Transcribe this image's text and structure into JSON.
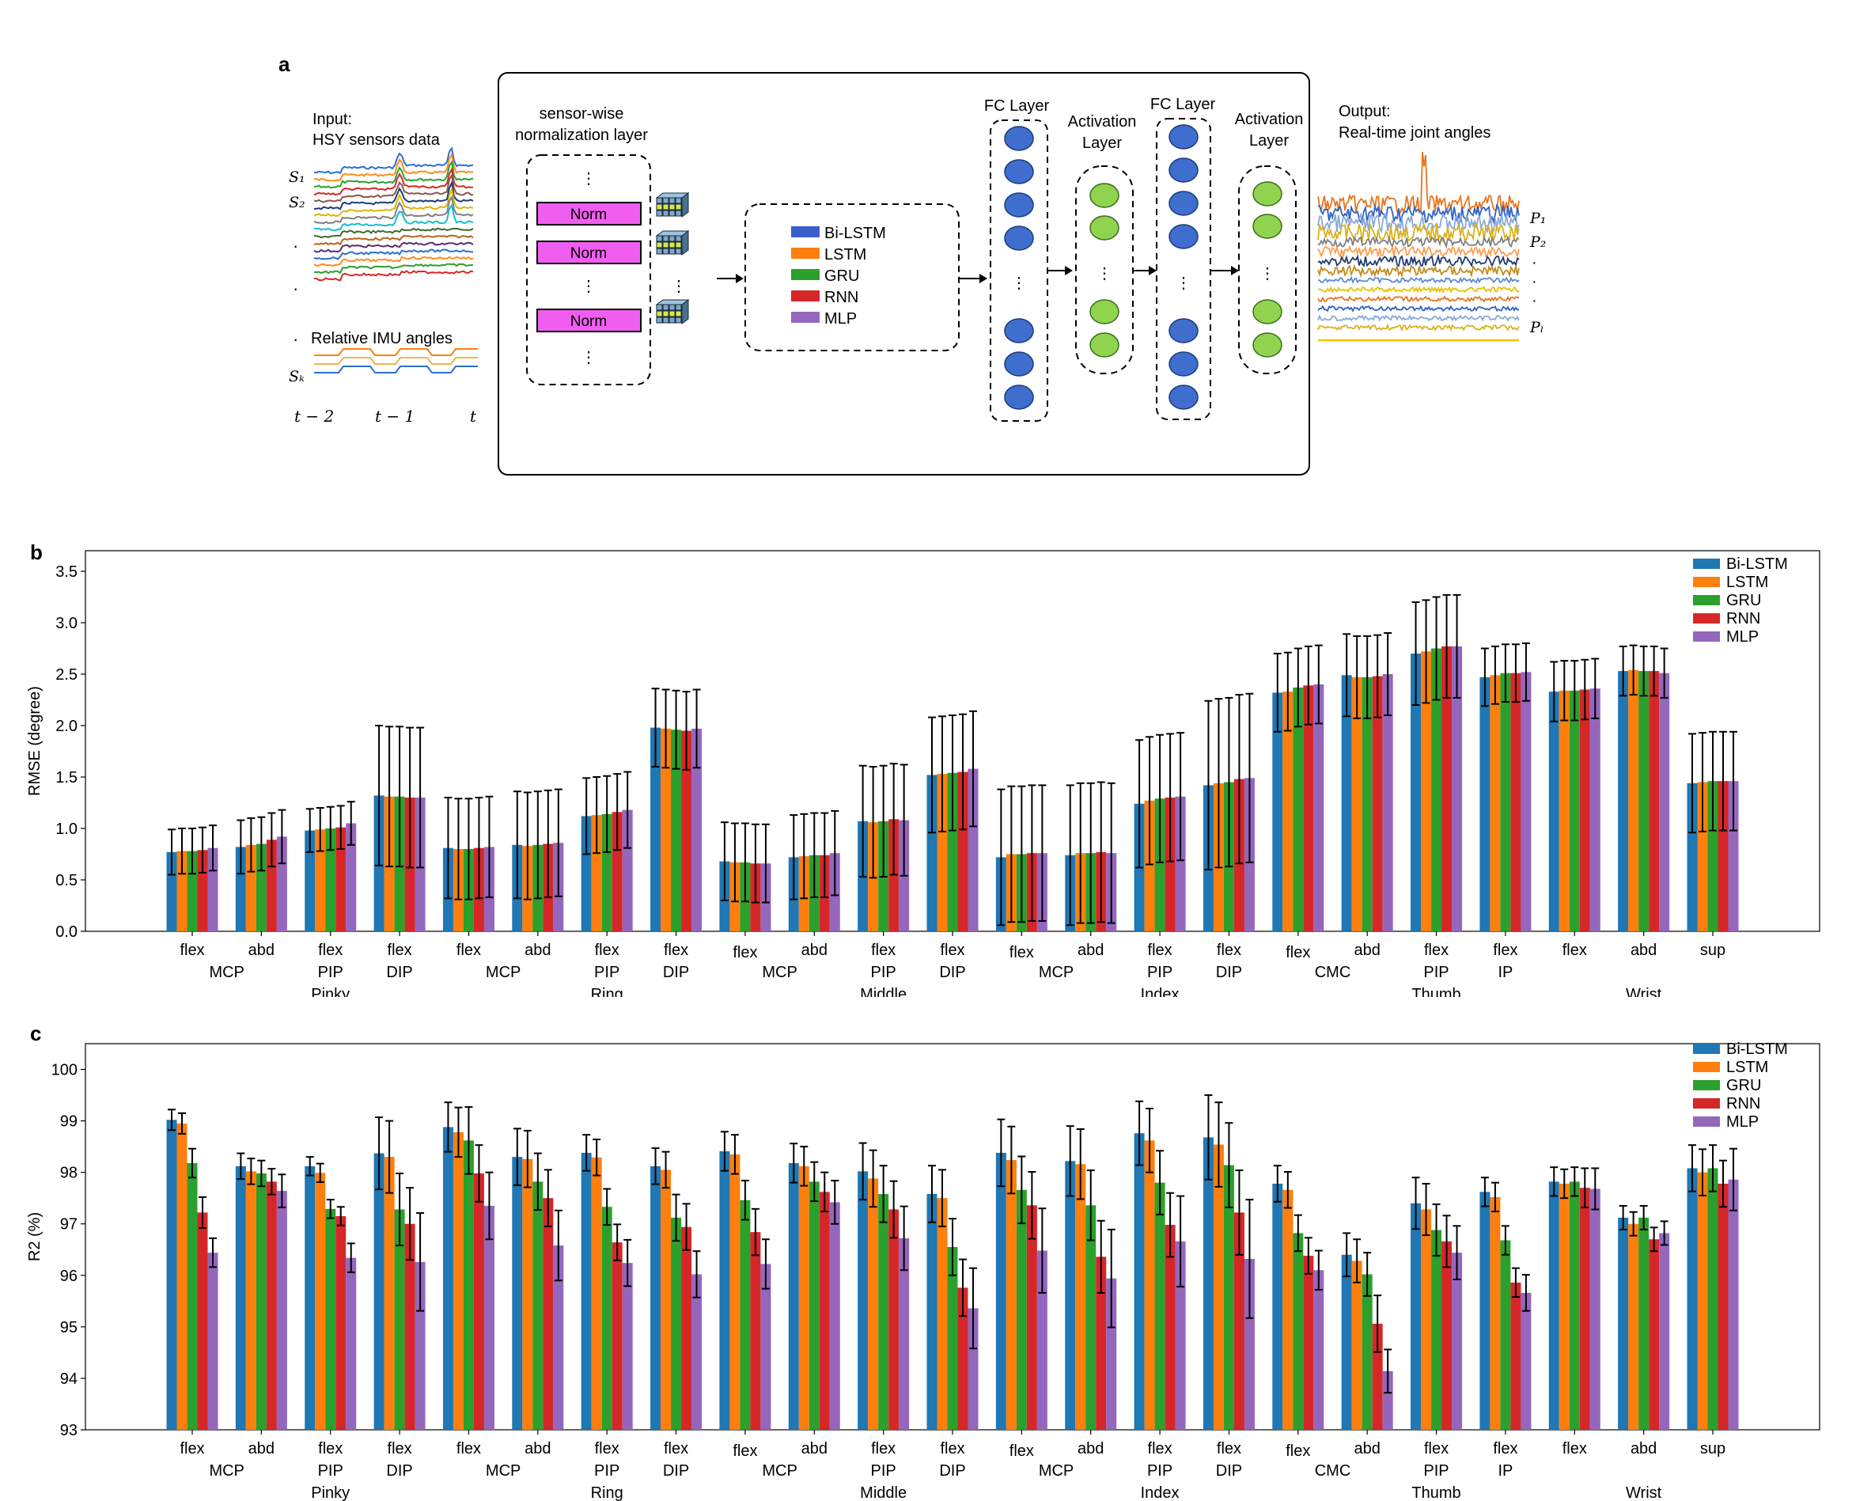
{
  "panel_a": {
    "label": "a",
    "input_title": "Input:",
    "input_subtitle": "HSY sensors data",
    "imu_label": "Relative IMU angles",
    "sensor_labels": [
      "S₁",
      "S₂",
      "Sₖ"
    ],
    "time_labels": [
      "t − 2",
      "t − 1",
      "t"
    ],
    "norm_layer_title_1": "sensor-wise",
    "norm_layer_title_2": "normalization layer",
    "norm_label": "Norm",
    "models": [
      {
        "name": "Bi-LSTM",
        "color": "#3a5fcd"
      },
      {
        "name": "LSTM",
        "color": "#ff7f0e"
      },
      {
        "name": "GRU",
        "color": "#2ca02c"
      },
      {
        "name": "RNN",
        "color": "#d62728"
      },
      {
        "name": "MLP",
        "color": "#9467bd"
      }
    ],
    "fc_layer_label": "FC Layer",
    "activation_label_1": "Activation",
    "activation_label_2": "Layer",
    "output_title": "Output:",
    "output_subtitle": "Real-time joint angles",
    "output_labels": [
      "P₁",
      "P₂",
      "Pₗ"
    ],
    "dots": "⋮"
  },
  "chart_data": [
    {
      "id": "b",
      "type": "bar",
      "panel_label": "b",
      "ylabel": "RMSE (degree)",
      "ylim": [
        0,
        3.7
      ],
      "yticks": [
        0.0,
        0.5,
        1.0,
        1.5,
        2.0,
        2.5,
        3.0,
        3.5
      ],
      "ytick_labels": [
        "0.0",
        "0.5",
        "1.0",
        "1.5",
        "2.0",
        "2.5",
        "3.0",
        "3.5"
      ],
      "legend_position": "top-right",
      "categories": [
        "flex",
        "abd",
        "flex",
        "flex",
        "flex",
        "abd",
        "flex",
        "flex",
        "flex",
        "abd",
        "flex",
        "flex",
        "flex",
        "abd",
        "flex",
        "flex",
        "flex",
        "abd",
        "flex",
        "flex",
        "flex",
        "abd",
        "sup"
      ],
      "group_labels": [
        "MCP",
        "PIP",
        "DIP",
        "MCP",
        "PIP",
        "DIP",
        "MCP",
        "PIP",
        "DIP",
        "MCP",
        "PIP",
        "DIP",
        "CMC",
        "PIP",
        "IP",
        "Wrist"
      ],
      "finger_labels": [
        "Pinky",
        "Ring",
        "Middle",
        "Index",
        "Thumb"
      ],
      "series": [
        {
          "name": "Bi-LSTM",
          "color": "#1f77b4",
          "values": [
            0.77,
            0.82,
            0.98,
            1.32,
            0.81,
            0.84,
            1.12,
            1.98,
            0.68,
            0.72,
            1.07,
            1.52,
            0.72,
            0.74,
            1.24,
            1.42,
            2.32,
            2.49,
            2.7,
            2.47,
            2.33,
            2.53,
            1.44
          ],
          "errors": [
            0.22,
            0.26,
            0.21,
            0.68,
            0.49,
            0.52,
            0.37,
            0.38,
            0.38,
            0.41,
            0.54,
            0.56,
            0.66,
            0.68,
            0.62,
            0.82,
            0.38,
            0.4,
            0.5,
            0.28,
            0.29,
            0.24,
            0.48
          ]
        },
        {
          "name": "LSTM",
          "color": "#ff7f0e",
          "values": [
            0.78,
            0.84,
            0.99,
            1.31,
            0.8,
            0.83,
            1.13,
            1.97,
            0.67,
            0.73,
            1.06,
            1.53,
            0.75,
            0.76,
            1.27,
            1.44,
            2.33,
            2.47,
            2.72,
            2.49,
            2.34,
            2.54,
            1.45
          ],
          "errors": [
            0.22,
            0.26,
            0.21,
            0.68,
            0.49,
            0.52,
            0.37,
            0.38,
            0.38,
            0.41,
            0.54,
            0.56,
            0.66,
            0.68,
            0.62,
            0.82,
            0.38,
            0.4,
            0.5,
            0.28,
            0.29,
            0.24,
            0.48
          ]
        },
        {
          "name": "GRU",
          "color": "#2ca02c",
          "values": [
            0.78,
            0.85,
            1.0,
            1.31,
            0.8,
            0.84,
            1.14,
            1.96,
            0.67,
            0.74,
            1.07,
            1.54,
            0.75,
            0.76,
            1.29,
            1.45,
            2.37,
            2.47,
            2.75,
            2.51,
            2.34,
            2.53,
            1.46
          ],
          "errors": [
            0.22,
            0.26,
            0.21,
            0.68,
            0.49,
            0.52,
            0.37,
            0.38,
            0.38,
            0.41,
            0.54,
            0.56,
            0.66,
            0.68,
            0.62,
            0.82,
            0.38,
            0.4,
            0.5,
            0.28,
            0.29,
            0.24,
            0.48
          ]
        },
        {
          "name": "RNN",
          "color": "#d62728",
          "values": [
            0.79,
            0.89,
            1.01,
            1.3,
            0.81,
            0.85,
            1.16,
            1.95,
            0.66,
            0.74,
            1.09,
            1.55,
            0.76,
            0.77,
            1.3,
            1.48,
            2.39,
            2.48,
            2.77,
            2.51,
            2.35,
            2.53,
            1.46
          ],
          "errors": [
            0.22,
            0.26,
            0.21,
            0.68,
            0.49,
            0.52,
            0.37,
            0.38,
            0.38,
            0.41,
            0.54,
            0.56,
            0.66,
            0.68,
            0.62,
            0.82,
            0.38,
            0.4,
            0.5,
            0.28,
            0.29,
            0.24,
            0.48
          ]
        },
        {
          "name": "MLP",
          "color": "#9467bd",
          "values": [
            0.81,
            0.92,
            1.05,
            1.3,
            0.82,
            0.86,
            1.18,
            1.97,
            0.66,
            0.76,
            1.08,
            1.58,
            0.76,
            0.76,
            1.31,
            1.49,
            2.4,
            2.5,
            2.77,
            2.52,
            2.36,
            2.51,
            1.46
          ],
          "errors": [
            0.22,
            0.26,
            0.21,
            0.68,
            0.49,
            0.52,
            0.37,
            0.38,
            0.38,
            0.41,
            0.54,
            0.56,
            0.66,
            0.68,
            0.62,
            0.82,
            0.38,
            0.4,
            0.5,
            0.28,
            0.29,
            0.24,
            0.48
          ]
        }
      ]
    },
    {
      "id": "c",
      "type": "bar",
      "panel_label": "c",
      "ylabel": "R2 (%)",
      "ylim": [
        93,
        100.5
      ],
      "yticks": [
        93,
        94,
        95,
        96,
        97,
        98,
        99,
        100
      ],
      "ytick_labels": [
        "93",
        "94",
        "95",
        "96",
        "97",
        "98",
        "99",
        "100"
      ],
      "legend_position": "top-right",
      "categories": [
        "flex",
        "abd",
        "flex",
        "flex",
        "flex",
        "abd",
        "flex",
        "flex",
        "flex",
        "abd",
        "flex",
        "flex",
        "flex",
        "abd",
        "flex",
        "flex",
        "flex",
        "abd",
        "flex",
        "flex",
        "flex",
        "abd",
        "sup"
      ],
      "group_labels": [
        "MCP",
        "PIP",
        "DIP",
        "MCP",
        "PIP",
        "DIP",
        "MCP",
        "PIP",
        "DIP",
        "MCP",
        "PIP",
        "DIP",
        "CMC",
        "PIP",
        "IP",
        "Wrist"
      ],
      "finger_labels": [
        "Pinky",
        "Ring",
        "Middle",
        "Index",
        "Thumb"
      ],
      "series": [
        {
          "name": "Bi-LSTM",
          "color": "#1f77b4",
          "values": [
            99.02,
            98.12,
            98.12,
            98.37,
            98.88,
            98.3,
            98.38,
            98.12,
            98.41,
            98.18,
            98.02,
            97.58,
            98.38,
            98.22,
            98.76,
            98.68,
            97.78,
            96.4,
            97.4,
            97.62,
            97.82,
            97.12,
            98.08
          ],
          "errors": [
            0.2,
            0.25,
            0.18,
            0.7,
            0.48,
            0.55,
            0.35,
            0.35,
            0.38,
            0.38,
            0.55,
            0.55,
            0.65,
            0.68,
            0.62,
            0.82,
            0.35,
            0.42,
            0.5,
            0.28,
            0.28,
            0.23,
            0.45
          ]
        },
        {
          "name": "LSTM",
          "color": "#ff7f0e",
          "values": [
            98.95,
            98.02,
            97.99,
            98.3,
            98.78,
            98.26,
            98.29,
            98.05,
            98.35,
            98.12,
            97.88,
            97.5,
            98.24,
            98.16,
            98.62,
            98.54,
            97.66,
            96.28,
            97.28,
            97.52,
            97.78,
            97.0,
            98.0
          ],
          "errors": [
            0.2,
            0.25,
            0.18,
            0.7,
            0.48,
            0.55,
            0.35,
            0.35,
            0.38,
            0.38,
            0.55,
            0.55,
            0.65,
            0.68,
            0.62,
            0.82,
            0.35,
            0.42,
            0.5,
            0.28,
            0.28,
            0.23,
            0.45
          ]
        },
        {
          "name": "GRU",
          "color": "#2ca02c",
          "values": [
            98.18,
            97.98,
            97.29,
            97.28,
            98.62,
            97.82,
            97.33,
            97.12,
            97.46,
            97.82,
            97.58,
            96.55,
            97.66,
            97.36,
            97.8,
            98.14,
            96.82,
            96.02,
            96.88,
            96.68,
            97.82,
            97.12,
            98.08
          ],
          "errors": [
            0.28,
            0.25,
            0.18,
            0.7,
            0.65,
            0.55,
            0.35,
            0.45,
            0.38,
            0.38,
            0.55,
            0.55,
            0.65,
            0.68,
            0.62,
            0.82,
            0.35,
            0.42,
            0.5,
            0.28,
            0.28,
            0.23,
            0.45
          ]
        },
        {
          "name": "RNN",
          "color": "#d62728",
          "values": [
            97.22,
            97.82,
            97.15,
            97.0,
            97.98,
            97.5,
            96.64,
            96.94,
            96.84,
            97.62,
            97.28,
            95.76,
            97.36,
            96.36,
            96.98,
            97.22,
            96.38,
            95.06,
            96.66,
            95.86,
            97.7,
            96.7,
            97.78
          ],
          "errors": [
            0.3,
            0.25,
            0.18,
            0.7,
            0.55,
            0.55,
            0.35,
            0.45,
            0.45,
            0.38,
            0.55,
            0.55,
            0.65,
            0.7,
            0.62,
            0.82,
            0.35,
            0.55,
            0.5,
            0.28,
            0.38,
            0.23,
            0.45
          ]
        },
        {
          "name": "MLP",
          "color": "#9467bd",
          "values": [
            96.44,
            97.64,
            96.34,
            96.26,
            97.35,
            96.58,
            96.24,
            96.02,
            96.22,
            97.42,
            96.72,
            95.36,
            96.48,
            95.94,
            96.66,
            96.32,
            96.1,
            94.14,
            96.44,
            95.66,
            97.68,
            96.82,
            97.86
          ],
          "errors": [
            0.28,
            0.32,
            0.28,
            0.95,
            0.65,
            0.68,
            0.45,
            0.45,
            0.48,
            0.42,
            0.62,
            0.78,
            0.82,
            0.95,
            0.88,
            1.15,
            0.38,
            0.42,
            0.52,
            0.35,
            0.4,
            0.23,
            0.6
          ]
        }
      ]
    }
  ]
}
